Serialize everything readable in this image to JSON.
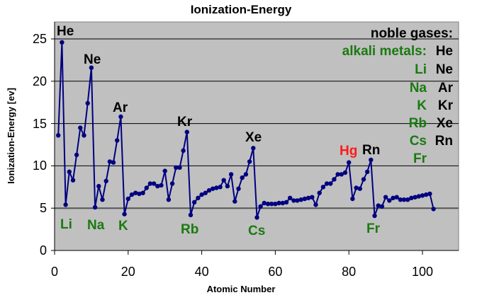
{
  "chart_data": {
    "type": "line",
    "title": "Ionization-Energy",
    "xlabel": "Atomic Number",
    "ylabel": "Ionization-Energy [ev]",
    "xlim": [
      0,
      110
    ],
    "ylim": [
      0,
      27
    ],
    "x_ticks": [
      0,
      20,
      40,
      60,
      80,
      100
    ],
    "y_ticks": [
      0,
      5,
      10,
      15,
      20,
      25
    ],
    "grid": "horizontal",
    "legend": "none",
    "colors": {
      "plot_background": "#c0c0c0",
      "series": "#000080",
      "noble": "#000000",
      "alkali": "#1a7a10",
      "highlight": "#ff1a1a"
    },
    "series": [
      {
        "name": "Ionization energy",
        "x": [
          1,
          2,
          3,
          4,
          5,
          6,
          7,
          8,
          9,
          10,
          11,
          12,
          13,
          14,
          15,
          16,
          17,
          18,
          19,
          20,
          21,
          22,
          23,
          24,
          25,
          26,
          27,
          28,
          29,
          30,
          31,
          32,
          33,
          34,
          35,
          36,
          37,
          38,
          39,
          40,
          41,
          42,
          43,
          44,
          45,
          46,
          47,
          48,
          49,
          50,
          51,
          52,
          53,
          54,
          55,
          56,
          57,
          58,
          59,
          60,
          61,
          62,
          63,
          64,
          65,
          66,
          67,
          68,
          69,
          70,
          71,
          72,
          73,
          74,
          75,
          76,
          77,
          78,
          79,
          80,
          81,
          82,
          83,
          84,
          85,
          86,
          87,
          88,
          89,
          90,
          91,
          92,
          93,
          94,
          95,
          96,
          97,
          98,
          99,
          100,
          101,
          102,
          103
        ],
        "values": [
          13.6,
          24.6,
          5.4,
          9.3,
          8.3,
          11.3,
          14.5,
          13.6,
          17.4,
          21.6,
          5.1,
          7.6,
          6.0,
          8.2,
          10.5,
          10.4,
          13.0,
          15.8,
          4.3,
          6.1,
          6.6,
          6.8,
          6.7,
          6.8,
          7.4,
          7.9,
          7.9,
          7.6,
          7.7,
          9.4,
          6.0,
          7.9,
          9.8,
          9.8,
          11.8,
          14.0,
          4.2,
          5.7,
          6.2,
          6.6,
          6.8,
          7.1,
          7.3,
          7.4,
          7.5,
          8.3,
          7.6,
          9.0,
          5.8,
          7.3,
          8.6,
          9.0,
          10.5,
          12.1,
          3.9,
          5.2,
          5.6,
          5.5,
          5.5,
          5.5,
          5.6,
          5.6,
          5.7,
          6.2,
          5.9,
          5.9,
          6.0,
          6.1,
          6.2,
          6.3,
          5.4,
          6.8,
          7.5,
          7.9,
          7.9,
          8.4,
          9.0,
          9.0,
          9.2,
          10.4,
          6.1,
          7.4,
          7.3,
          8.4,
          9.3,
          10.7,
          4.1,
          5.3,
          5.2,
          6.3,
          5.9,
          6.2,
          6.3,
          6.0,
          6.0,
          6.0,
          6.2,
          6.3,
          6.4,
          6.5,
          6.6,
          6.7,
          4.9
        ]
      }
    ],
    "annotations": [
      {
        "text": "He",
        "x": 2,
        "group": "noble"
      },
      {
        "text": "Ne",
        "x": 10,
        "group": "noble"
      },
      {
        "text": "Ar",
        "x": 18,
        "group": "noble"
      },
      {
        "text": "Kr",
        "x": 36,
        "group": "noble"
      },
      {
        "text": "Xe",
        "x": 54,
        "group": "noble"
      },
      {
        "text": "Rn",
        "x": 86,
        "group": "noble"
      },
      {
        "text": "Hg",
        "x": 80,
        "group": "highlight"
      },
      {
        "text": "Li",
        "x": 3,
        "group": "alkali"
      },
      {
        "text": "Na",
        "x": 11,
        "group": "alkali"
      },
      {
        "text": "K",
        "x": 19,
        "group": "alkali"
      },
      {
        "text": "Rb",
        "x": 37,
        "group": "alkali"
      },
      {
        "text": "Cs",
        "x": 55,
        "group": "alkali"
      },
      {
        "text": "Fr",
        "x": 87,
        "group": "alkali"
      }
    ],
    "key_box": {
      "noble_header": "noble gases:",
      "alkali_header": "alkali metals:",
      "noble": [
        "He",
        "Ne",
        "Ar",
        "Kr",
        "Xe",
        "Rn"
      ],
      "alkali": [
        "Li",
        "Na",
        "K",
        "Rb",
        "Cs",
        "Fr"
      ]
    }
  },
  "labels": {
    "title": "Ionization-Energy",
    "xlabel": "Atomic Number",
    "ylabel": "Ionization-Energy [ev]",
    "x_ticks": [
      "0",
      "20",
      "40",
      "60",
      "80",
      "100"
    ],
    "y_ticks": [
      "0",
      "5",
      "10",
      "15",
      "20",
      "25"
    ],
    "peaks": {
      "he": "He",
      "ne": "Ne",
      "ar": "Ar",
      "kr": "Kr",
      "xe": "Xe",
      "rn": "Rn",
      "hg": "Hg"
    },
    "troughs": {
      "li": "Li",
      "na": "Na",
      "k": "K",
      "rb": "Rb",
      "cs": "Cs",
      "fr": "Fr"
    },
    "key": {
      "noble_header": "noble gases:",
      "alkali_header": "alkali metals:",
      "noble": [
        "He",
        "Ne",
        "Ar",
        "Kr",
        "Xe",
        "Rn"
      ],
      "alkali": [
        "Li",
        "Na",
        "K",
        "Rb",
        "Cs",
        "Fr"
      ]
    }
  }
}
